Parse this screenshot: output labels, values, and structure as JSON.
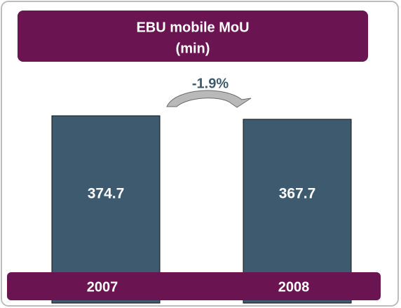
{
  "chart_data": {
    "type": "bar",
    "title": "EBU mobile MoU",
    "subtitle": "(min)",
    "categories": [
      "2007",
      "2008"
    ],
    "values": [
      374.7,
      367.7
    ],
    "color": "#3d5a6e",
    "annotation": "-1.9%"
  }
}
